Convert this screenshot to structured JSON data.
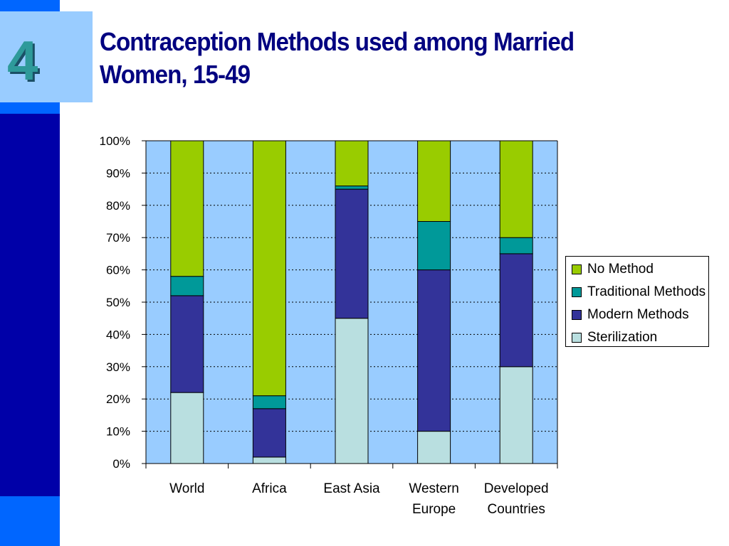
{
  "slide": {
    "number": "4",
    "title": "Contraception Methods used among Married Women, 15-49"
  },
  "colors": {
    "sidebar_bright": "#0066ff",
    "sidebar_dark": "#0000a8",
    "badge_bg": "#99ccff",
    "title": "#000080",
    "plot_bg": "#99ccff"
  },
  "chart_data": {
    "type": "bar",
    "stacked": true,
    "categories": [
      "World",
      "Africa",
      "East Asia",
      "Western Europe",
      "Developed Countries"
    ],
    "category_lines": [
      [
        "World"
      ],
      [
        "Africa"
      ],
      [
        "East Asia"
      ],
      [
        "Western",
        "Europe"
      ],
      [
        "Developed",
        "Countries"
      ]
    ],
    "series": [
      {
        "name": "Sterilization",
        "color": "#b9dfe0",
        "values": [
          22,
          2,
          45,
          10,
          30
        ]
      },
      {
        "name": "Modern Methods",
        "color": "#333399",
        "values": [
          30,
          15,
          40,
          50,
          35
        ]
      },
      {
        "name": "Traditional Methods",
        "color": "#009999",
        "values": [
          6,
          4,
          1,
          15,
          5
        ]
      },
      {
        "name": "No Method",
        "color": "#99cc00",
        "values": [
          42,
          79,
          14,
          25,
          30
        ]
      }
    ],
    "y_ticks": [
      "0%",
      "10%",
      "20%",
      "30%",
      "40%",
      "50%",
      "60%",
      "70%",
      "80%",
      "90%",
      "100%"
    ],
    "ylim": [
      0,
      100
    ],
    "grid": true,
    "legend_position": "right",
    "legend_order": [
      "No Method",
      "Traditional Methods",
      "Modern Methods",
      "Sterilization"
    ]
  }
}
